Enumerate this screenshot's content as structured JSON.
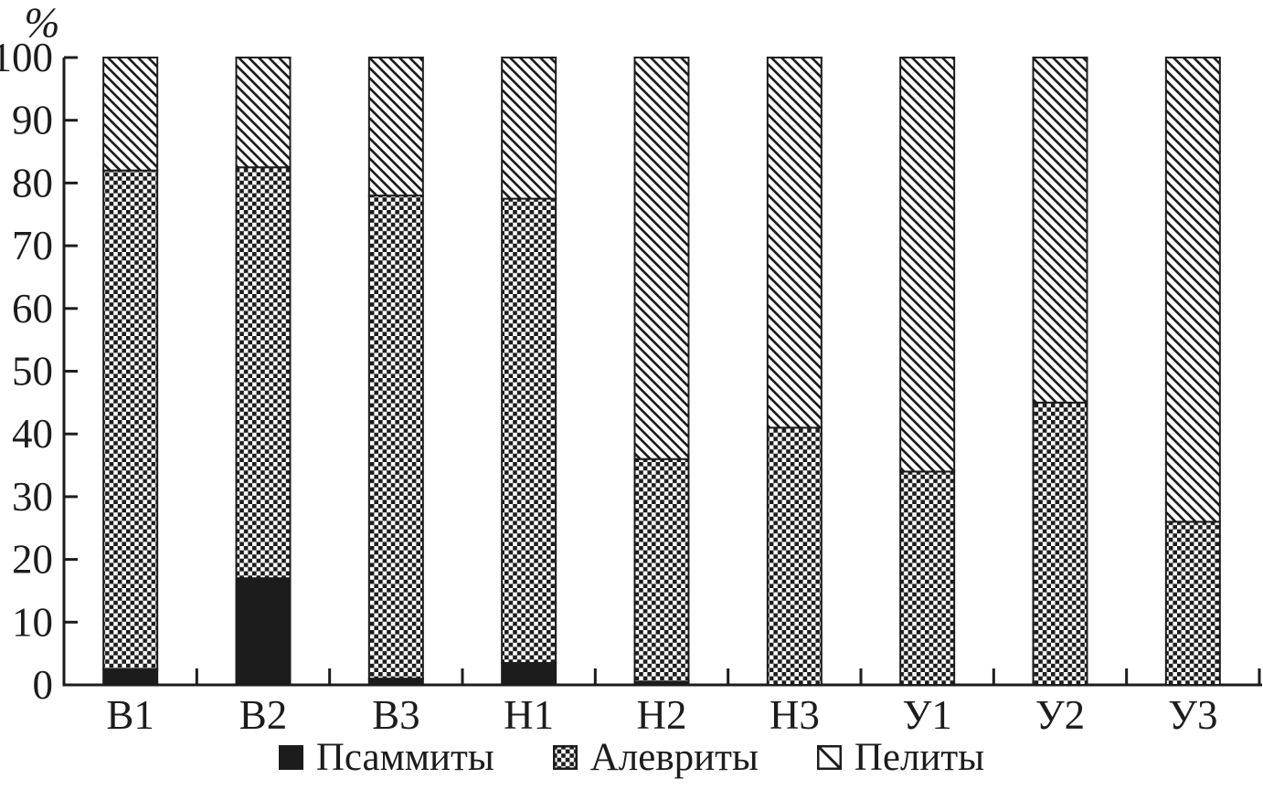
{
  "chart_data": {
    "type": "bar",
    "stacked": true,
    "ylabel": "%",
    "ylim": [
      0,
      100
    ],
    "y_ticks": [
      0,
      10,
      20,
      30,
      40,
      50,
      60,
      70,
      80,
      90,
      100
    ],
    "grid": false,
    "legend_position": "bottom",
    "categories": [
      "В1",
      "В2",
      "В3",
      "Н1",
      "Н2",
      "Н3",
      "У1",
      "У2",
      "У3"
    ],
    "series": [
      {
        "name": "Псаммиты",
        "pattern": "solid-black",
        "values": [
          2.5,
          17.0,
          1.0,
          3.5,
          0.5,
          0,
          0,
          0,
          0
        ]
      },
      {
        "name": "Алевриты",
        "pattern": "checkerboard",
        "values": [
          79.5,
          65.5,
          77.0,
          74.0,
          35.5,
          41.0,
          34.0,
          45.0,
          26.0
        ]
      },
      {
        "name": "Пелиты",
        "pattern": "diagonal-hatch",
        "values": [
          18.0,
          17.5,
          22.0,
          22.5,
          64.0,
          59.0,
          66.0,
          55.0,
          74.0
        ]
      }
    ],
    "stack_tops": {
      "В1": 82.0,
      "В2": 82.5,
      "В3": 78.0,
      "Н1": 77.5,
      "Н2": 36.0,
      "Н3": 41.0,
      "У1": 34.0,
      "У2": 45.0,
      "У3": 26.0
    },
    "colors": {
      "ink": "#1c1c1c",
      "background": "#ffffff"
    }
  }
}
